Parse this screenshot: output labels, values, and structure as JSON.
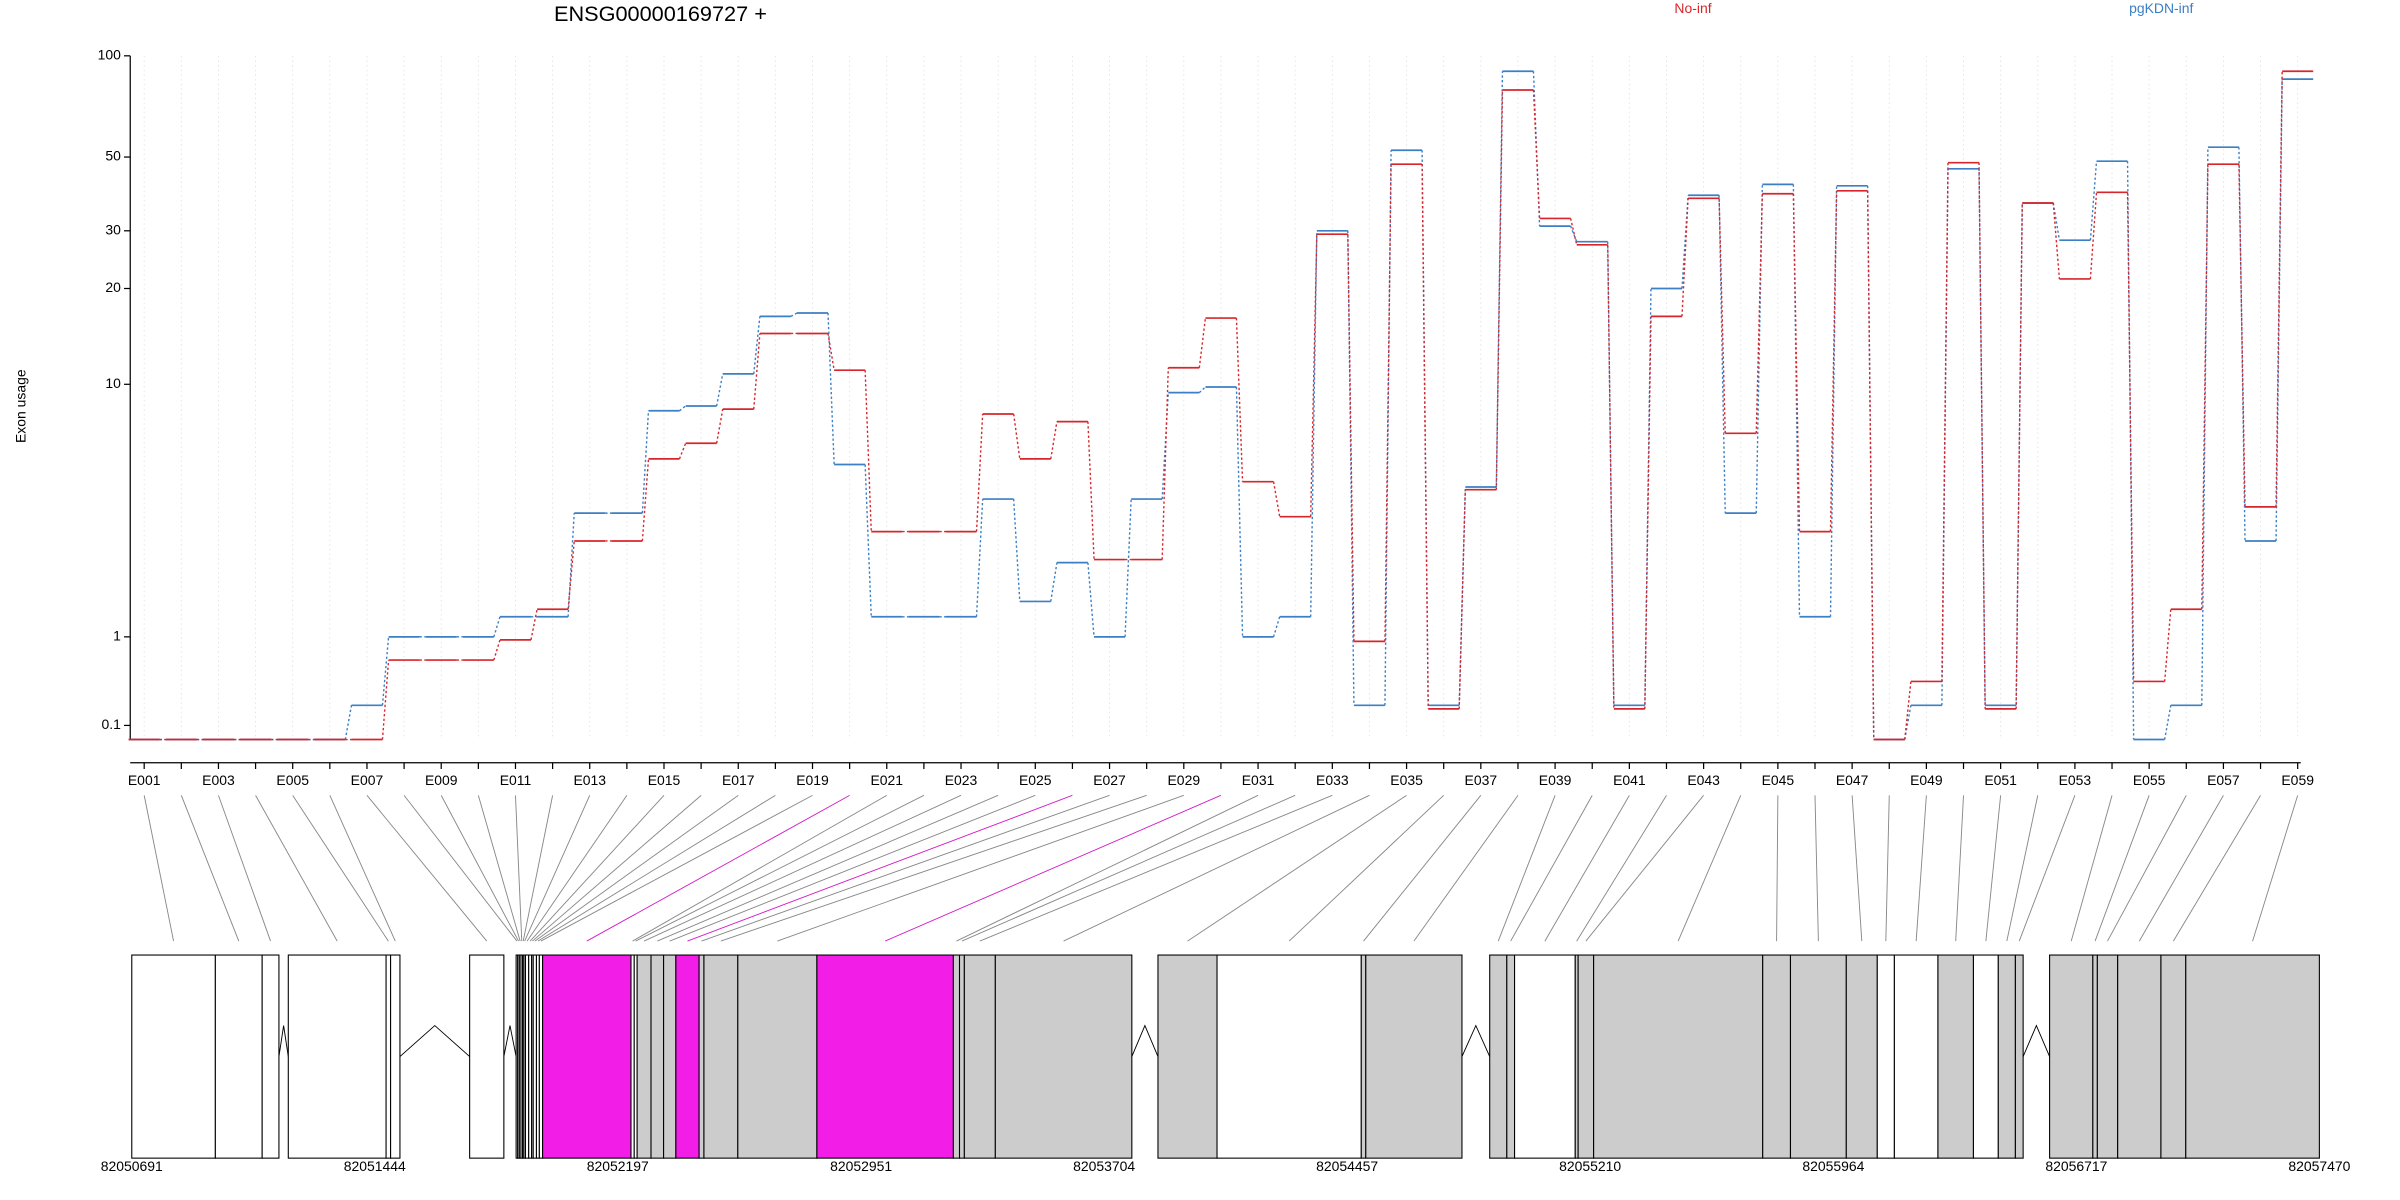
{
  "chart_data": [
    {
      "type": "step",
      "title": "ENSG00000169727 +",
      "ylabel": "Exon usage",
      "yscale": "log1p",
      "ylim": [
        0,
        100
      ],
      "yticks": [
        0.1,
        1,
        10,
        20,
        30,
        50,
        100
      ],
      "grid": true,
      "categories": [
        "E001",
        null,
        "E003",
        null,
        "E005",
        null,
        "E007",
        null,
        "E009",
        null,
        "E011",
        null,
        "E013",
        null,
        "E015",
        null,
        "E017",
        null,
        "E019",
        null,
        "E021",
        null,
        "E023",
        null,
        "E025",
        null,
        "E027",
        null,
        "E029",
        null,
        "E031",
        null,
        "E033",
        null,
        "E035",
        null,
        "E037",
        null,
        "E039",
        null,
        "E041",
        null,
        "E043",
        null,
        "E045",
        null,
        "E047",
        null,
        "E049",
        null,
        "E051",
        null,
        "E053",
        null,
        "E055",
        null,
        "E057",
        null,
        "E059"
      ],
      "series": [
        {
          "name": "No-inf",
          "color": "#d7262b",
          "values": [
            0,
            0,
            0,
            0,
            0,
            0,
            0,
            0.71,
            0.71,
            0.71,
            0.96,
            1.41,
            2.82,
            2.82,
            5.65,
            6.39,
            8.3,
            14.5,
            14.5,
            11.1,
            3.07,
            3.07,
            3.07,
            8.0,
            5.65,
            7.55,
            2.37,
            2.37,
            11.3,
            16.2,
            4.7,
            3.5,
            29.3,
            0.94,
            47.6,
            0.23,
            4.4,
            79.2,
            32.7,
            27.2,
            0.23,
            16.4,
            37.6,
            6.9,
            38.8,
            3.07,
            39.6,
            0,
            0.48,
            48.1,
            0.23,
            36.4,
            21.4,
            39.2,
            0.48,
            1.41,
            47.6,
            3.81,
            90
          ]
        },
        {
          "name": "pgKDN-inf",
          "color": "#3b7fc4",
          "values": [
            0,
            0,
            0,
            0,
            0,
            0,
            0.26,
            1.0,
            1.0,
            1.0,
            1.29,
            1.29,
            3.61,
            3.61,
            8.2,
            8.5,
            10.8,
            16.4,
            16.8,
            5.4,
            1.29,
            1.29,
            1.29,
            4.07,
            1.54,
            2.3,
            1.0,
            4.07,
            9.4,
            9.8,
            1.0,
            1.29,
            30.0,
            0.26,
            52.4,
            0.26,
            4.5,
            90,
            31,
            27.8,
            0.26,
            20,
            38.4,
            3.61,
            41.4,
            1.29,
            41,
            0,
            0.26,
            46.1,
            0.26,
            36.4,
            28.1,
            48.6,
            0,
            0.26,
            53.5,
            2.82,
            85.3
          ]
        }
      ]
    },
    {
      "type": "gene_model",
      "xlim": [
        82050691,
        82057470
      ],
      "xticks": [
        82050691,
        82051444,
        82052197,
        82052951,
        82053704,
        82054457,
        82055210,
        82055964,
        82056717,
        82057470
      ],
      "exons": {
        "start": [
          82050691,
          82050950,
          82051095,
          82051176,
          82051479,
          82051493,
          82051738,
          82051882,
          82051887,
          82051892,
          82051897,
          82051902,
          82051906,
          82051911,
          82051921,
          82051930,
          82051935,
          82051945,
          82051954,
          82051964,
          82052238,
          82052248,
          82052257,
          82052300,
          82052339,
          82052377,
          82052449,
          82052464,
          82052569,
          82052814,
          82053237,
          82053256,
          82053271,
          82053367,
          82053871,
          82054054,
          82054501,
          82054515,
          82054899,
          82054952,
          82054976,
          82055164,
          82055173,
          82055221,
          82055745,
          82055831,
          82056004,
          82056100,
          82056153,
          82056288,
          82056398,
          82056475,
          82056528,
          82056634,
          82056768,
          82056782,
          82056845,
          82056979,
          82057056
        ],
        "end": [
          82050950,
          82051095,
          82051147,
          82051479,
          82051493,
          82051522,
          82051844,
          82051887,
          82051892,
          82051897,
          82051902,
          82051906,
          82051911,
          82051921,
          82051930,
          82051935,
          82051945,
          82051954,
          82051964,
          82052238,
          82052248,
          82052257,
          82052300,
          82052339,
          82052377,
          82052449,
          82052464,
          82052569,
          82052814,
          82053237,
          82053256,
          82053271,
          82053367,
          82053790,
          82054054,
          82054501,
          82054515,
          82054813,
          82054952,
          82054976,
          82055164,
          82055173,
          82055221,
          82055745,
          82055831,
          82056004,
          82056100,
          82056153,
          82056288,
          82056398,
          82056475,
          82056528,
          82056552,
          82056768,
          82056782,
          82056845,
          82056979,
          82057056,
          82057470
        ],
        "fill": [
          "#ffffff",
          "#ffffff",
          "#ffffff",
          "#ffffff",
          "#ffffff",
          "#ffffff",
          "#ffffff",
          "#ffffff",
          "#ffffff",
          "#ffffff",
          "#ffffff",
          "#ffffff",
          "#ffffff",
          "#ffffff",
          "#ffffff",
          "#ffffff",
          "#ffffff",
          "#ffffff",
          "#ffffff",
          "#f21ee8",
          "#ffffff",
          "#ffffff",
          "#cccccc",
          "#cccccc",
          "#cccccc",
          "#f21ee8",
          "#cccccc",
          "#cccccc",
          "#cccccc",
          "#f21ee8",
          "#cccccc",
          "#cccccc",
          "#cccccc",
          "#cccccc",
          "#cccccc",
          "#ffffff",
          "#cccccc",
          "#cccccc",
          "#cccccc",
          "#cccccc",
          "#ffffff",
          "#cccccc",
          "#cccccc",
          "#cccccc",
          "#cccccc",
          "#cccccc",
          "#cccccc",
          "#ffffff",
          "#ffffff",
          "#cccccc",
          "#ffffff",
          "#cccccc",
          "#cccccc",
          "#cccccc",
          "#cccccc",
          "#cccccc",
          "#cccccc",
          "#cccccc",
          "#cccccc"
        ]
      }
    }
  ]
}
